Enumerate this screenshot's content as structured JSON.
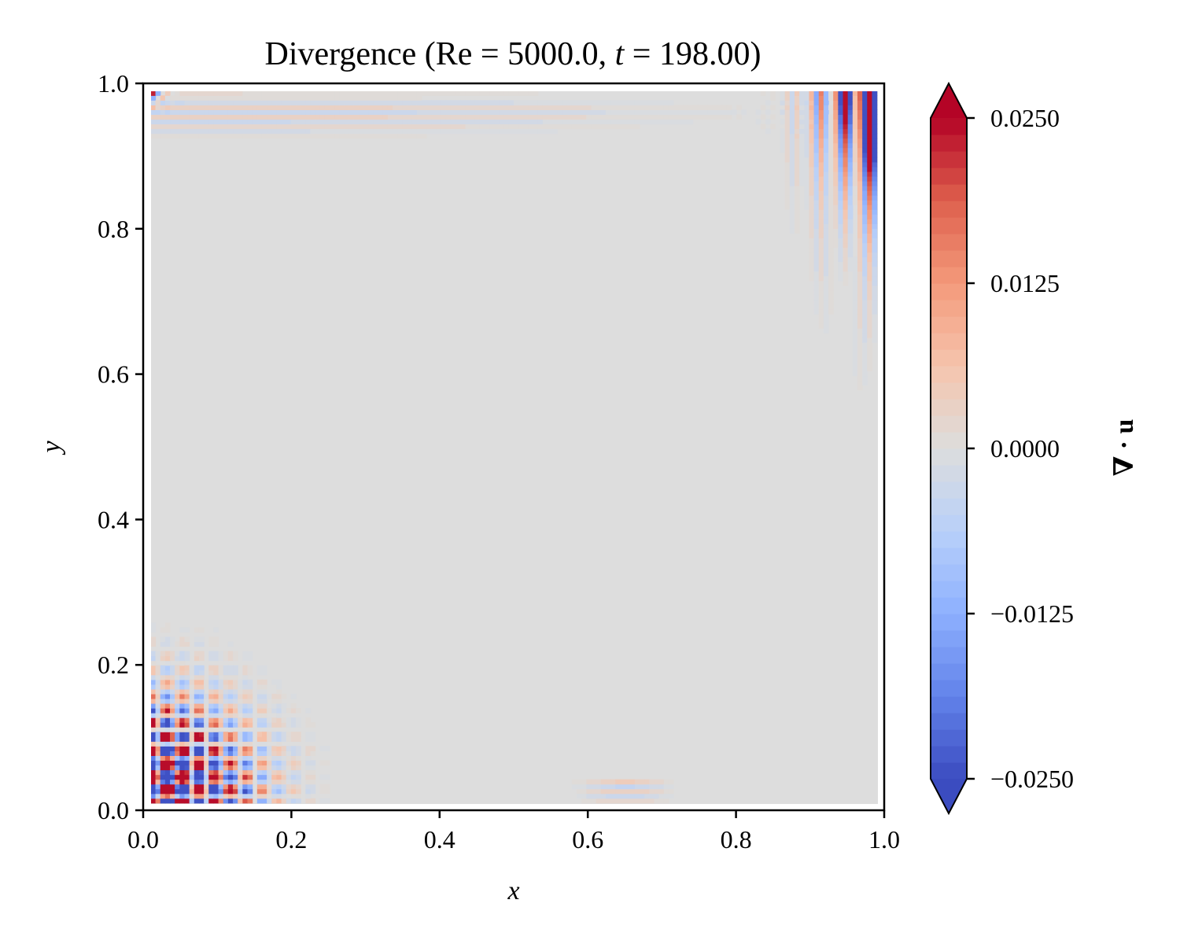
{
  "chart_data": {
    "type": "heatmap",
    "title": {
      "prefix": "Divergence (Re = 5000.0, ",
      "t_symbol": "t",
      "suffix": " = 198.00)"
    },
    "xlabel": "x",
    "ylabel": "y",
    "xlim": [
      0.0,
      1.0
    ],
    "ylim": [
      0.0,
      1.0
    ],
    "x_ticks": [
      "0.0",
      "0.2",
      "0.4",
      "0.6",
      "0.8",
      "1.0"
    ],
    "y_ticks": [
      "0.0",
      "0.2",
      "0.4",
      "0.6",
      "0.8",
      "1.0"
    ],
    "x_tick_values": [
      0.0,
      0.2,
      0.4,
      0.6,
      0.8,
      1.0
    ],
    "y_tick_values": [
      0.0,
      0.2,
      0.4,
      0.6,
      0.8,
      1.0
    ],
    "grid": false,
    "field_extent": [
      0.01,
      0.99
    ],
    "colorbar": {
      "label": "∇ · u",
      "range": [
        -0.025,
        0.025
      ],
      "ticks": [
        "0.0250",
        "0.0125",
        "0.0000",
        "−0.0125",
        "−0.0250"
      ],
      "tick_values": [
        0.025,
        0.0125,
        0.0,
        -0.0125,
        -0.025
      ],
      "levels": 40,
      "extend": "both",
      "colormap": "coolwarm",
      "low_color": "#3b4cc0",
      "mid_color": "#dddddd",
      "high_color": "#b40426"
    },
    "features": [
      {
        "region": "bottom-left corner",
        "x_range": [
          0.0,
          0.25
        ],
        "y_range": [
          0.0,
          0.22
        ],
        "pattern": "checkerboard oscillation, saturated ±0.025 near corner"
      },
      {
        "region": "top-right corner",
        "x_range": [
          0.82,
          0.99
        ],
        "y_range": [
          0.6,
          0.99
        ],
        "pattern": "vertical stripes, saturated near top"
      },
      {
        "region": "top edge",
        "x_range": [
          0.0,
          0.85
        ],
        "y_range": [
          0.9,
          0.99
        ],
        "pattern": "weak horizontal stripes"
      },
      {
        "region": "interior",
        "pattern": "near zero divergence"
      }
    ]
  }
}
